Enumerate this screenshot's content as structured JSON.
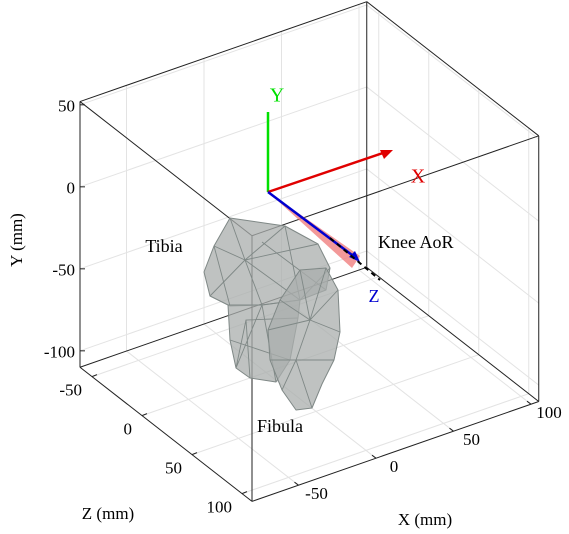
{
  "chart_data": {
    "type": "mesh3d",
    "xlabel": "X (mm)",
    "ylabel": "Y (mm)",
    "zlabel": "Z (mm)",
    "xlim": [
      -80,
      105
    ],
    "ylim": [
      -110,
      52
    ],
    "zlim": [
      -62,
      110
    ],
    "xticks": [
      -50,
      0,
      50,
      100
    ],
    "yticks": [
      -100,
      -50,
      0,
      50
    ],
    "zticks": [
      -50,
      0,
      50,
      100
    ],
    "grid": true,
    "annotations": [
      {
        "text": "Y",
        "color": "#00e000"
      },
      {
        "text": "X",
        "color": "#e00000"
      },
      {
        "text": "Z",
        "color": "#0000d0"
      },
      {
        "text": "Knee AoR",
        "color": "#000000"
      },
      {
        "text": "Tibia",
        "color": "#000000"
      },
      {
        "text": "Fibula",
        "color": "#000000"
      }
    ]
  }
}
